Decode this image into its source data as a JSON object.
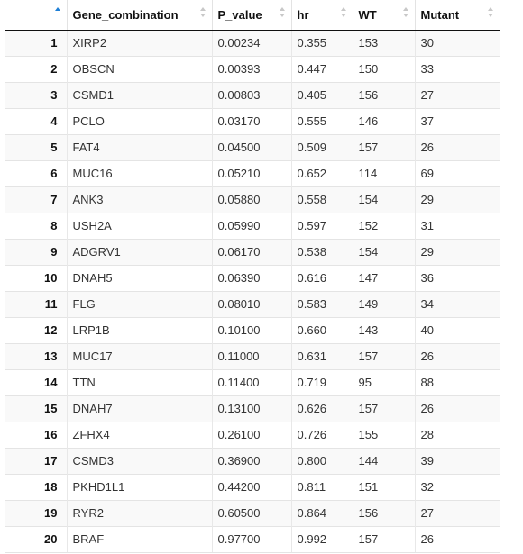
{
  "table": {
    "columns": [
      "",
      "Gene_combination",
      "P_value",
      "hr",
      "WT",
      "Mutant"
    ],
    "rows": [
      [
        "1",
        "XIRP2",
        "0.00234",
        "0.355",
        "153",
        "30"
      ],
      [
        "2",
        "OBSCN",
        "0.00393",
        "0.447",
        "150",
        "33"
      ],
      [
        "3",
        "CSMD1",
        "0.00803",
        "0.405",
        "156",
        "27"
      ],
      [
        "4",
        "PCLO",
        "0.03170",
        "0.555",
        "146",
        "37"
      ],
      [
        "5",
        "FAT4",
        "0.04500",
        "0.509",
        "157",
        "26"
      ],
      [
        "6",
        "MUC16",
        "0.05210",
        "0.652",
        "114",
        "69"
      ],
      [
        "7",
        "ANK3",
        "0.05880",
        "0.558",
        "154",
        "29"
      ],
      [
        "8",
        "USH2A",
        "0.05990",
        "0.597",
        "152",
        "31"
      ],
      [
        "9",
        "ADGRV1",
        "0.06170",
        "0.538",
        "154",
        "29"
      ],
      [
        "10",
        "DNAH5",
        "0.06390",
        "0.616",
        "147",
        "36"
      ],
      [
        "11",
        "FLG",
        "0.08010",
        "0.583",
        "149",
        "34"
      ],
      [
        "12",
        "LRP1B",
        "0.10100",
        "0.660",
        "143",
        "40"
      ],
      [
        "13",
        "MUC17",
        "0.11000",
        "0.631",
        "157",
        "26"
      ],
      [
        "14",
        "TTN",
        "0.11400",
        "0.719",
        "95",
        "88"
      ],
      [
        "15",
        "DNAH7",
        "0.13100",
        "0.626",
        "157",
        "26"
      ],
      [
        "16",
        "ZFHX4",
        "0.26100",
        "0.726",
        "155",
        "28"
      ],
      [
        "17",
        "CSMD3",
        "0.36900",
        "0.800",
        "144",
        "39"
      ],
      [
        "18",
        "PKHD1L1",
        "0.44200",
        "0.811",
        "151",
        "32"
      ],
      [
        "19",
        "RYR2",
        "0.60500",
        "0.864",
        "156",
        "27"
      ],
      [
        "20",
        "BRAF",
        "0.97700",
        "0.992",
        "157",
        "26"
      ]
    ],
    "sort_icon": "sort-arrows-icon",
    "active_sort_color": "#1e7fd6"
  }
}
